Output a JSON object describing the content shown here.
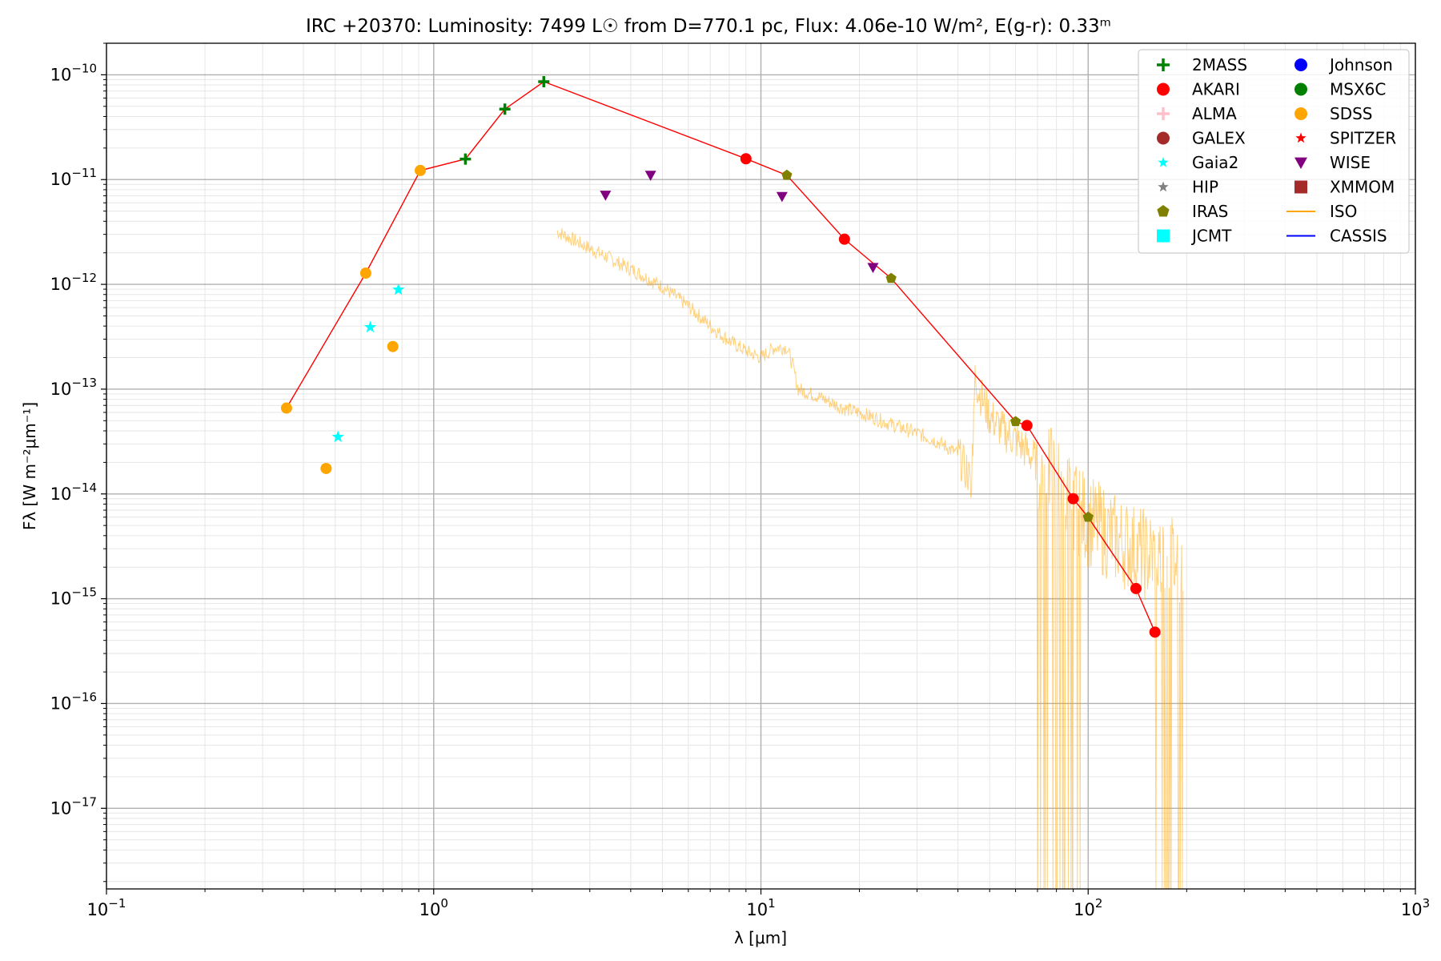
{
  "chart_data": {
    "type": "scatter",
    "title": "IRC +20370:  Luminosity: 7499 L☉ from D=770.1 pc, Flux: 4.06e-10 W/m², E(g-r): 0.33ᵐ",
    "xlabel": "λ [μm]",
    "ylabel": "Fλ [W m⁻²μm⁻¹]",
    "xscale": "log",
    "yscale": "log",
    "xlim": [
      0.1,
      1000
    ],
    "ylim": [
      1.7e-18,
      2e-10
    ],
    "grid": true,
    "legend_position": "top-right",
    "x_ticks": [
      {
        "base": "10",
        "exp": "−1"
      },
      {
        "base": "10",
        "exp": "0"
      },
      {
        "base": "10",
        "exp": "1"
      },
      {
        "base": "10",
        "exp": "2"
      },
      {
        "base": "10",
        "exp": "3"
      }
    ],
    "y_ticks": [
      {
        "base": "10",
        "exp": "−17"
      },
      {
        "base": "10",
        "exp": "−16"
      },
      {
        "base": "10",
        "exp": "−15"
      },
      {
        "base": "10",
        "exp": "−14"
      },
      {
        "base": "10",
        "exp": "−13"
      },
      {
        "base": "10",
        "exp": "−12"
      },
      {
        "base": "10",
        "exp": "−11"
      },
      {
        "base": "10",
        "exp": "−10"
      }
    ],
    "x_tick_values": [
      0.1,
      1,
      10,
      100,
      1000
    ],
    "y_tick_values": [
      1e-17,
      1e-16,
      1e-15,
      1e-14,
      1e-13,
      1e-12,
      1e-11,
      1e-10
    ],
    "sed_line": {
      "color": "#ff0000",
      "x": [
        0.355,
        0.62,
        0.91,
        1.25,
        1.65,
        2.17,
        9.0,
        12.0,
        18.0,
        25.0,
        60.0,
        65.0,
        90.0,
        100.0,
        140.0,
        160.0
      ],
      "y": [
        6.6e-14,
        1.28e-12,
        1.22e-11,
        1.57e-11,
        4.7e-11,
        8.6e-11,
        1.58e-11,
        1.1e-11,
        2.7e-12,
        1.14e-12,
        4.9e-14,
        4.5e-14,
        9e-15,
        6e-15,
        1.25e-15,
        4.8e-16
      ]
    },
    "series": [
      {
        "name": "2MASS",
        "marker": "plus",
        "color": "#008000",
        "x": [
          1.25,
          1.65,
          2.17
        ],
        "y": [
          1.57e-11,
          4.7e-11,
          8.6e-11
        ]
      },
      {
        "name": "AKARI",
        "marker": "circle",
        "color": "#ff0000",
        "x": [
          9.0,
          18.0,
          65.0,
          90.0,
          140.0,
          160.0
        ],
        "y": [
          1.58e-11,
          2.7e-12,
          4.5e-14,
          9e-15,
          1.25e-15,
          4.8e-16
        ]
      },
      {
        "name": "ALMA",
        "marker": "plus",
        "color": "#ffc0cb",
        "x": [],
        "y": []
      },
      {
        "name": "GALEX",
        "marker": "circle",
        "color": "#a52a2a",
        "x": [],
        "y": []
      },
      {
        "name": "Gaia2",
        "marker": "star",
        "color": "#00ffff",
        "x": [
          0.51,
          0.64,
          0.78
        ],
        "y": [
          3.5e-14,
          3.9e-13,
          8.9e-13
        ]
      },
      {
        "name": "HIP",
        "marker": "star",
        "color": "#808080",
        "x": [],
        "y": []
      },
      {
        "name": "IRAS",
        "marker": "pentagon",
        "color": "#808000",
        "x": [
          12.0,
          25.0,
          60.0,
          100.0
        ],
        "y": [
          1.1e-11,
          1.14e-12,
          4.9e-14,
          6e-15
        ]
      },
      {
        "name": "JCMT",
        "marker": "square",
        "color": "#00ffff",
        "x": [],
        "y": []
      },
      {
        "name": "Johnson",
        "marker": "circle",
        "color": "#0000ff",
        "x": [],
        "y": []
      },
      {
        "name": "MSX6C",
        "marker": "circle",
        "color": "#008000",
        "x": [],
        "y": []
      },
      {
        "name": "SDSS",
        "marker": "circle",
        "color": "#ffa500",
        "x": [
          0.355,
          0.469,
          0.62,
          0.75,
          0.91
        ],
        "y": [
          6.6e-14,
          1.75e-14,
          1.28e-12,
          2.55e-13,
          1.22e-11
        ]
      },
      {
        "name": "SPITZER",
        "marker": "star",
        "color": "#ff0000",
        "x": [],
        "y": []
      },
      {
        "name": "WISE",
        "marker": "triangle-down",
        "color": "#800080",
        "x": [
          3.35,
          4.6,
          11.6,
          22.0
        ],
        "y": [
          7.1e-12,
          1.1e-11,
          6.9e-12,
          1.45e-12
        ]
      },
      {
        "name": "XMMOM",
        "marker": "square",
        "color": "#a52a2a",
        "x": [],
        "y": []
      },
      {
        "name": "ISO",
        "marker": "line",
        "color": "#ffa500",
        "x": [
          2.38,
          3.0,
          4.0,
          5.0,
          6.0,
          7.0,
          8.0,
          9.0,
          10.0,
          11.0,
          12.0,
          12.5,
          13.0,
          15.0,
          18.0,
          20.0,
          25.0,
          30.0,
          35.0,
          40.0,
          44.0,
          45.0,
          50.0,
          55.0,
          60.0,
          70.0,
          80.0,
          90.0,
          100.0,
          120.0,
          150.0,
          180.0,
          195.0
        ],
        "y": [
          3.2e-12,
          2.2e-12,
          1.4e-12,
          9.5e-13,
          6.2e-13,
          4e-13,
          2.9e-13,
          2.3e-13,
          2e-13,
          2.5e-13,
          2.5e-13,
          1.7e-13,
          1e-13,
          8.5e-14,
          6.5e-14,
          6e-14,
          4.6e-14,
          3.8e-14,
          3.1e-14,
          2.4e-14,
          1.3e-14,
          1.2e-13,
          5.5e-14,
          4e-14,
          3.3e-14,
          2e-14,
          1.4e-14,
          8e-15,
          5.5e-15,
          3.8e-15,
          2.6e-15,
          2.4e-15,
          2.3e-15
        ]
      },
      {
        "name": "CASSIS",
        "marker": "line",
        "color": "#0000ff",
        "x": [],
        "y": []
      }
    ]
  }
}
